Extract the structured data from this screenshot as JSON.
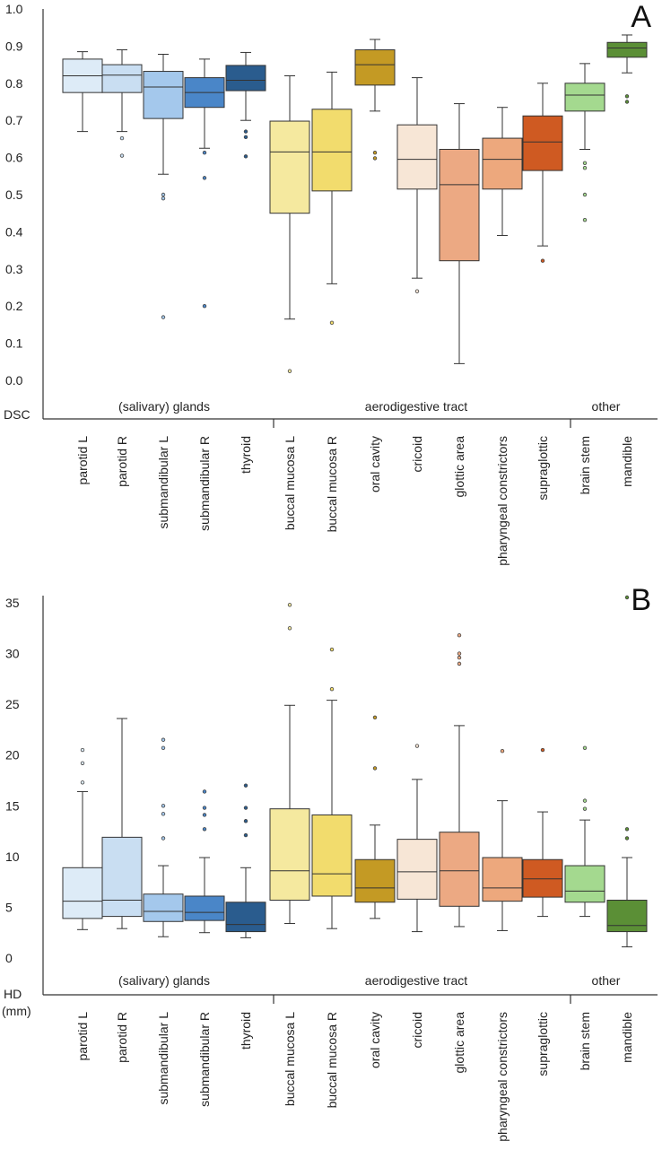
{
  "chart_data": [
    {
      "type": "box",
      "panel_label": "A",
      "ylabel": "DSC",
      "ylim": [
        0.0,
        1.0
      ],
      "yticks": [
        "0.0",
        "0.1",
        "0.2",
        "0.3",
        "0.4",
        "0.5",
        "0.6",
        "0.7",
        "0.8",
        "0.9",
        "1.0"
      ],
      "groups": [
        {
          "label": "(salivary) glands",
          "categories": [
            0,
            1,
            2,
            3,
            4
          ]
        },
        {
          "label": "aerodigestive tract",
          "categories": [
            5,
            6,
            7,
            8,
            9,
            10,
            11
          ]
        },
        {
          "label": "other",
          "categories": [
            12,
            13
          ]
        }
      ],
      "series": [
        {
          "name": "parotid L",
          "color": "#ddebf7",
          "whislo": 0.67,
          "q1": 0.775,
          "med": 0.82,
          "q3": 0.865,
          "whishi": 0.885,
          "fliers": []
        },
        {
          "name": "parotid R",
          "color": "#c9def2",
          "whislo": 0.67,
          "q1": 0.775,
          "med": 0.822,
          "q3": 0.85,
          "whishi": 0.89,
          "fliers": [
            0.652,
            0.605
          ]
        },
        {
          "name": "submandibular L",
          "color": "#a4c8ec",
          "whislo": 0.555,
          "q1": 0.705,
          "med": 0.79,
          "q3": 0.832,
          "whishi": 0.878,
          "fliers": [
            0.5,
            0.49,
            0.17
          ]
        },
        {
          "name": "submandibular R",
          "color": "#4a86c8",
          "whislo": 0.625,
          "q1": 0.735,
          "med": 0.775,
          "q3": 0.815,
          "whishi": 0.865,
          "fliers": [
            0.613,
            0.545,
            0.2
          ]
        },
        {
          "name": "thyroid",
          "color": "#2a5c8e",
          "whislo": 0.7,
          "q1": 0.78,
          "med": 0.808,
          "q3": 0.848,
          "whishi": 0.883,
          "fliers": [
            0.67,
            0.655,
            0.603
          ]
        },
        {
          "name": "buccal mucosa L",
          "color": "#f5e99f",
          "whislo": 0.165,
          "q1": 0.45,
          "med": 0.615,
          "q3": 0.698,
          "whishi": 0.82,
          "fliers": [
            0.025
          ]
        },
        {
          "name": "buccal mucosa R",
          "color": "#f2dc6d",
          "whislo": 0.26,
          "q1": 0.51,
          "med": 0.615,
          "q3": 0.73,
          "whishi": 0.83,
          "fliers": [
            0.155
          ]
        },
        {
          "name": "oral cavity",
          "color": "#c49a24",
          "whislo": 0.725,
          "q1": 0.795,
          "med": 0.85,
          "q3": 0.89,
          "whishi": 0.918,
          "fliers": [
            0.613,
            0.598
          ]
        },
        {
          "name": "cricoid",
          "color": "#f7e6d6",
          "whislo": 0.275,
          "q1": 0.515,
          "med": 0.595,
          "q3": 0.688,
          "whishi": 0.815,
          "fliers": [
            0.24
          ]
        },
        {
          "name": "glottic area",
          "color": "#eca983",
          "whislo": 0.045,
          "q1": 0.322,
          "med": 0.527,
          "q3": 0.622,
          "whishi": 0.745,
          "fliers": []
        },
        {
          "name": "pharyngeal constrictors",
          "color": "#eda87d",
          "whislo": 0.39,
          "q1": 0.515,
          "med": 0.595,
          "q3": 0.652,
          "whishi": 0.735,
          "fliers": []
        },
        {
          "name": "supraglottic",
          "color": "#cf5a22",
          "whislo": 0.362,
          "q1": 0.565,
          "med": 0.642,
          "q3": 0.712,
          "whishi": 0.8,
          "fliers": [
            0.322
          ]
        },
        {
          "name": "brain stem",
          "color": "#a4d98f",
          "whislo": 0.622,
          "q1": 0.725,
          "med": 0.768,
          "q3": 0.8,
          "whishi": 0.853,
          "fliers": [
            0.585,
            0.572,
            0.5,
            0.432
          ]
        },
        {
          "name": "mandible",
          "color": "#5b8f36",
          "whislo": 0.828,
          "q1": 0.87,
          "med": 0.895,
          "q3": 0.91,
          "whishi": 0.93,
          "fliers": [
            0.765,
            0.75
          ]
        }
      ]
    },
    {
      "type": "box",
      "panel_label": "B",
      "ylabel": "HD",
      "ylabel_unit": "(mm)",
      "ylim": [
        0,
        35
      ],
      "yticks": [
        "0",
        "5",
        "10",
        "15",
        "20",
        "25",
        "30",
        "35"
      ],
      "groups": [
        {
          "label": "(salivary) glands",
          "categories": [
            0,
            1,
            2,
            3,
            4
          ]
        },
        {
          "label": "aerodigestive tract",
          "categories": [
            5,
            6,
            7,
            8,
            9,
            10,
            11
          ]
        },
        {
          "label": "other",
          "categories": [
            12,
            13
          ]
        }
      ],
      "series": [
        {
          "name": "parotid L",
          "color": "#ddebf7",
          "whislo": 2.8,
          "q1": 3.9,
          "med": 5.6,
          "q3": 8.9,
          "whishi": 16.4,
          "fliers": [
            20.5,
            19.2,
            17.3
          ]
        },
        {
          "name": "parotid R",
          "color": "#c9def2",
          "whislo": 2.9,
          "q1": 4.1,
          "med": 5.7,
          "q3": 11.9,
          "whishi": 23.6,
          "fliers": []
        },
        {
          "name": "submandibular L",
          "color": "#a4c8ec",
          "whislo": 2.1,
          "q1": 3.6,
          "med": 4.6,
          "q3": 6.3,
          "whishi": 9.1,
          "fliers": [
            21.5,
            20.7,
            15.0,
            14.2,
            11.8
          ]
        },
        {
          "name": "submandibular R",
          "color": "#4a86c8",
          "whislo": 2.5,
          "q1": 3.7,
          "med": 4.5,
          "q3": 6.1,
          "whishi": 9.9,
          "fliers": [
            16.4,
            14.8,
            14.1,
            12.7
          ]
        },
        {
          "name": "thyroid",
          "color": "#2a5c8e",
          "whislo": 2.0,
          "q1": 2.6,
          "med": 3.3,
          "q3": 5.5,
          "whishi": 8.9,
          "fliers": [
            17.0,
            14.8,
            13.5,
            12.1
          ]
        },
        {
          "name": "buccal mucosa L",
          "color": "#f5e99f",
          "whislo": 3.4,
          "q1": 5.7,
          "med": 8.6,
          "q3": 14.7,
          "whishi": 24.9,
          "fliers": [
            34.8,
            32.5
          ]
        },
        {
          "name": "buccal mucosa R",
          "color": "#f2dc6d",
          "whislo": 2.9,
          "q1": 6.1,
          "med": 8.3,
          "q3": 14.1,
          "whishi": 25.4,
          "fliers": [
            30.4,
            26.5
          ]
        },
        {
          "name": "oral cavity",
          "color": "#c49a24",
          "whislo": 3.9,
          "q1": 5.5,
          "med": 6.9,
          "q3": 9.7,
          "whishi": 13.1,
          "fliers": [
            23.7,
            18.7
          ]
        },
        {
          "name": "cricoid",
          "color": "#f7e6d6",
          "whislo": 2.6,
          "q1": 5.8,
          "med": 8.5,
          "q3": 11.7,
          "whishi": 17.6,
          "fliers": [
            20.9
          ]
        },
        {
          "name": "glottic area",
          "color": "#eca983",
          "whislo": 3.1,
          "q1": 5.1,
          "med": 8.6,
          "q3": 12.4,
          "whishi": 22.9,
          "fliers": [
            31.8,
            30.0,
            29.6,
            29.0
          ]
        },
        {
          "name": "pharyngeal constrictors",
          "color": "#eda87d",
          "whislo": 2.7,
          "q1": 5.6,
          "med": 6.9,
          "q3": 9.9,
          "whishi": 15.5,
          "fliers": [
            20.4
          ]
        },
        {
          "name": "supraglottic",
          "color": "#cf5a22",
          "whislo": 4.1,
          "q1": 6.0,
          "med": 7.8,
          "q3": 9.7,
          "whishi": 14.4,
          "fliers": [
            20.5
          ]
        },
        {
          "name": "brain stem",
          "color": "#a4d98f",
          "whislo": 4.1,
          "q1": 5.5,
          "med": 6.6,
          "q3": 9.1,
          "whishi": 13.6,
          "fliers": [
            20.7,
            15.5,
            14.7
          ]
        },
        {
          "name": "mandible",
          "color": "#5b8f36",
          "whislo": 1.1,
          "q1": 2.6,
          "med": 3.2,
          "q3": 5.7,
          "whishi": 9.9,
          "fliers": [
            12.7,
            11.8,
            36.3
          ]
        }
      ]
    }
  ]
}
